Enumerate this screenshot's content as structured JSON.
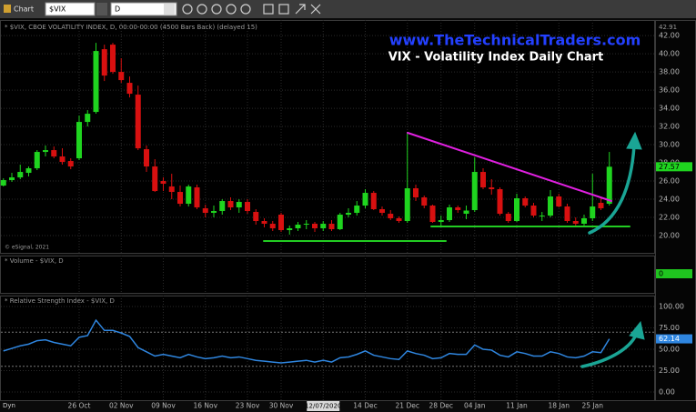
{
  "toolbar": {
    "label": "Chart",
    "symbol": "$VIX",
    "interval": "D"
  },
  "footer": {
    "mode": "Dyn"
  },
  "chart_data": [
    {
      "type": "candlestick",
      "header": "* $VIX, CBOE VOLATILITY INDEX, D, 00:00-00:00 (4500 Bars Back) (delayed 15)",
      "subtitle": "www.TheTechnicalTraders.com",
      "title": "VIX - Volatility Index Daily Chart",
      "copyright": "© eSignal, 2021",
      "categories": [
        null,
        null,
        null,
        null,
        null,
        null,
        null,
        null,
        null,
        "26 Oct",
        null,
        null,
        null,
        null,
        "02 Nov",
        null,
        null,
        null,
        null,
        "09 Nov",
        null,
        null,
        null,
        null,
        "16 Nov",
        null,
        null,
        null,
        null,
        "23 Nov",
        null,
        null,
        null,
        "30 Nov",
        null,
        null,
        null,
        null,
        "12/07/2020",
        null,
        null,
        null,
        null,
        "14 Dec",
        null,
        null,
        null,
        null,
        "21 Dec",
        null,
        null,
        null,
        "28 Dec",
        null,
        null,
        null,
        "04 Jan",
        null,
        null,
        null,
        null,
        "11 Jan",
        null,
        null,
        null,
        null,
        "18 Jan",
        null,
        null,
        null,
        "25 Jan",
        null,
        null
      ],
      "cursor_category": 38,
      "open": [
        25.5,
        26.1,
        26.4,
        26.9,
        27.4,
        29.2,
        29.4,
        28.7,
        28.2,
        28.5,
        32.5,
        33.6,
        40.5,
        41.0,
        38.0,
        36.8,
        35.5,
        29.5,
        27.6,
        26.0,
        25.4,
        24.8,
        23.5,
        25.3,
        23.0,
        22.5,
        22.7,
        23.8,
        23.1,
        23.7,
        22.6,
        21.6,
        21.3,
        22.3,
        20.6,
        20.8,
        21.2,
        21.3,
        20.8,
        21.3,
        20.7,
        22.3,
        22.5,
        23.3,
        24.7,
        22.9,
        22.4,
        21.9,
        21.6,
        25.2,
        24.2,
        23.3,
        21.5,
        21.7,
        23.1,
        22.4,
        22.8,
        27.0,
        25.3,
        25.1,
        22.4,
        21.6,
        24.1,
        23.3,
        22.1,
        22.2,
        24.3,
        23.2,
        21.6,
        21.3,
        21.9,
        23.6,
        23.5
      ],
      "high": [
        26.3,
        26.9,
        27.8,
        27.6,
        29.4,
        29.9,
        29.8,
        29.6,
        28.5,
        33.2,
        33.8,
        41.2,
        41.0,
        41.2,
        39.5,
        37.5,
        36.5,
        29.9,
        28.4,
        26.4,
        26.8,
        25.5,
        25.6,
        25.6,
        23.4,
        23.3,
        24.0,
        24.2,
        24.0,
        24.0,
        22.9,
        21.9,
        21.6,
        22.5,
        21.1,
        21.5,
        21.7,
        21.5,
        21.6,
        21.7,
        22.5,
        23.0,
        23.8,
        25.1,
        24.9,
        23.2,
        22.8,
        22.1,
        31.4,
        25.6,
        24.4,
        23.4,
        22.2,
        23.4,
        23.3,
        23.3,
        28.6,
        27.4,
        26.2,
        25.3,
        22.6,
        24.6,
        24.3,
        23.6,
        22.6,
        25.0,
        24.6,
        23.5,
        22.0,
        22.3,
        26.8,
        24.2,
        29.2
      ],
      "low": [
        25.4,
        25.9,
        26.2,
        26.5,
        27.2,
        28.7,
        28.5,
        27.8,
        27.3,
        28.3,
        32.0,
        33.4,
        37.0,
        37.8,
        36.8,
        35.2,
        29.4,
        27.0,
        24.8,
        24.9,
        24.0,
        23.2,
        23.2,
        22.9,
        22.0,
        22.0,
        22.3,
        22.8,
        22.5,
        22.4,
        21.2,
        20.9,
        20.5,
        20.4,
        20.1,
        20.5,
        20.7,
        20.4,
        20.5,
        20.5,
        20.6,
        22.0,
        22.2,
        23.0,
        22.8,
        22.2,
        21.7,
        21.4,
        21.4,
        23.8,
        23.0,
        21.4,
        21.0,
        21.5,
        22.5,
        21.8,
        22.6,
        25.1,
        24.5,
        22.2,
        21.4,
        21.5,
        23.1,
        22.0,
        21.6,
        22.0,
        23.1,
        21.4,
        21.0,
        20.9,
        21.6,
        22.8,
        23.3
      ],
      "close": [
        26.1,
        26.4,
        27.0,
        27.4,
        29.2,
        29.4,
        28.7,
        28.1,
        27.6,
        32.5,
        33.4,
        40.3,
        37.6,
        38.0,
        37.1,
        35.6,
        29.6,
        27.6,
        24.9,
        25.7,
        24.8,
        23.5,
        25.4,
        23.1,
        22.5,
        22.7,
        23.8,
        23.1,
        23.7,
        22.7,
        21.6,
        21.3,
        20.8,
        20.6,
        20.8,
        21.2,
        21.3,
        20.8,
        21.3,
        20.7,
        22.3,
        22.5,
        23.3,
        24.7,
        22.9,
        22.5,
        21.9,
        21.6,
        25.2,
        24.2,
        23.3,
        21.5,
        21.7,
        23.1,
        22.8,
        22.75,
        27.0,
        25.3,
        25.1,
        22.4,
        21.6,
        24.1,
        23.3,
        22.2,
        22.2,
        24.3,
        23.2,
        21.6,
        21.3,
        21.9,
        23.2,
        23.0,
        27.57
      ],
      "up_color": "#1fd41f",
      "down_color": "#d81010",
      "ylim": [
        18.1,
        42.91
      ],
      "yticks": [
        {
          "value": 20,
          "label": "20.00"
        },
        {
          "value": 22,
          "label": "22.00"
        },
        {
          "value": 24,
          "label": "24.00"
        },
        {
          "value": 26,
          "label": "26.00"
        },
        {
          "value": 28,
          "label": "28.00"
        },
        {
          "value": 30,
          "label": "30.00"
        },
        {
          "value": 32,
          "label": "32.00"
        },
        {
          "value": 34,
          "label": "34.00"
        },
        {
          "value": 36,
          "label": "36.00"
        },
        {
          "value": 38,
          "label": "38.00"
        },
        {
          "value": 40,
          "label": "40.00"
        },
        {
          "value": 42,
          "label": "42.00"
        }
      ],
      "grid": true
    },
    {
      "type": "volume",
      "header": "* Volume - $VIX, D",
      "last_value": 0,
      "color": "#1fc41f"
    },
    {
      "type": "line",
      "header": "* Relative Strength Index - $VIX, D",
      "values": [
        48,
        51,
        54,
        56,
        60,
        61,
        58,
        56,
        54,
        64,
        66,
        84,
        72,
        72,
        69,
        65,
        52,
        47,
        42,
        44,
        42,
        40,
        44,
        41,
        39,
        40,
        42,
        40,
        41,
        39,
        37,
        36,
        35,
        34,
        35,
        36,
        37,
        35,
        37,
        35,
        40,
        41,
        44,
        48,
        43,
        41,
        39,
        38,
        48,
        45,
        43,
        39,
        40,
        45,
        44,
        44,
        55,
        50,
        49,
        43,
        41,
        47,
        45,
        42,
        42,
        47,
        45,
        41,
        40,
        42,
        47,
        46,
        62.14
      ],
      "color": "#2f86e0",
      "ylim": [
        -9.6,
        111.7
      ],
      "yticks": [
        {
          "value": 0,
          "label": "0.00"
        },
        {
          "value": 25,
          "label": "25.00"
        },
        {
          "value": 50,
          "label": "50.00"
        },
        {
          "value": 75,
          "label": "75.00"
        },
        {
          "value": 100,
          "label": "100.00"
        }
      ],
      "reference_lines": [
        70,
        30
      ]
    }
  ]
}
